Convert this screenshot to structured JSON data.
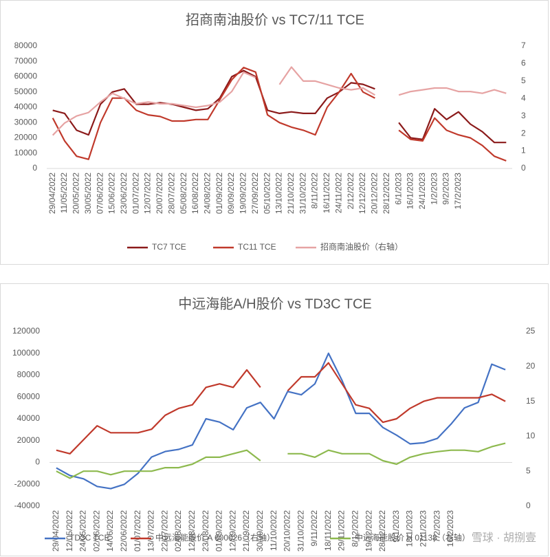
{
  "chart_data": [
    {
      "type": "line",
      "title": "招商南油股价 vs TC7/11 TCE",
      "categories": [
        "29/04/2022",
        "11/05/2022",
        "20/05/2022",
        "30/05/2022",
        "07/06/2022",
        "15/06/2022",
        "23/06/2022",
        "01/07/2022",
        "12/07/2022",
        "20/07/2022",
        "28/07/2022",
        "05/08/2022",
        "16/08/2022",
        "24/08/2022",
        "01/09/2022",
        "09/09/2022",
        "19/09/2022",
        "27/09/2022",
        "05/10/2022",
        "13/10/2022",
        "21/10/2022",
        "31/10/2022",
        "8/11/2022",
        "16/11/2022",
        "24/11/2022",
        "2/12/2022",
        "12/12/2022",
        "20/12/2022",
        "28/12/2022",
        "6/1/2023",
        "16/1/2023",
        "24/1/2023",
        "1/2/2023",
        "9/2/2023",
        "17/2/2023",
        null,
        null,
        null,
        null
      ],
      "ylim": [
        0,
        80000
      ],
      "yticks": [
        0,
        10000,
        20000,
        30000,
        40000,
        50000,
        60000,
        70000,
        80000
      ],
      "y2lim": [
        0,
        7
      ],
      "y2ticks": [
        0,
        1,
        2,
        3,
        4,
        5,
        6,
        7
      ],
      "series": [
        {
          "name": "TC7 TCE",
          "color": "#8b1a1a",
          "values": [
            38000,
            36000,
            25000,
            22000,
            42000,
            50000,
            52000,
            42000,
            42000,
            43000,
            42000,
            40000,
            38000,
            39000,
            46000,
            60000,
            64000,
            60000,
            38000,
            36000,
            37000,
            36000,
            36000,
            46000,
            50000,
            56000,
            55000,
            52000,
            null,
            30000,
            20000,
            19000,
            39000,
            32000,
            37000,
            29000,
            24000,
            17000,
            17000
          ]
        },
        {
          "name": "TC11 TCE",
          "color": "#c0392b",
          "values": [
            33000,
            18000,
            8000,
            6000,
            30000,
            46000,
            46000,
            38000,
            35000,
            34000,
            31000,
            31000,
            32000,
            32000,
            45000,
            58000,
            66000,
            63000,
            35000,
            30000,
            27000,
            25000,
            22000,
            40000,
            50000,
            62000,
            50000,
            46000,
            null,
            25000,
            19000,
            18000,
            33000,
            25000,
            22000,
            20000,
            15000,
            8000,
            5000
          ]
        },
        {
          "name": "招商南油股价（右轴）",
          "color": "#e6a3a3",
          "axis": "y2",
          "values": [
            1.9,
            2.6,
            3.0,
            3.2,
            3.8,
            4.3,
            4.0,
            3.7,
            3.8,
            3.7,
            3.7,
            3.6,
            3.5,
            3.6,
            3.8,
            4.4,
            5.5,
            5.2,
            null,
            4.8,
            5.8,
            5.0,
            5.0,
            4.8,
            4.6,
            4.5,
            4.6,
            4.2,
            null,
            4.2,
            4.4,
            4.5,
            4.6,
            4.6,
            4.4,
            4.4,
            4.3,
            4.5,
            4.3
          ]
        }
      ]
    },
    {
      "type": "line",
      "title": "中远海能A/H股价 vs TD3C TCE",
      "categories": [
        "29/04/2022",
        "12/05/2022",
        "24/05/2022",
        "02/06/2022",
        "14/06/2022",
        "22/06/2022",
        "01/07/2022",
        "13/07/2022",
        "22/07/2022",
        "02/08/2022",
        "12/08/2022",
        "23/08/2022",
        "01/09/2022",
        "12/09/2022",
        "21/09/2022",
        "30/09/2022",
        "11/10/2022",
        "20/10/2022",
        "31/10/2022",
        "9/11/2022",
        "18/11/2022",
        "29/11/2022",
        "8/12/2022",
        "19/12/2022",
        "28/12/2022",
        "9/1/2023",
        "18/1/2023",
        "27/1/2023",
        "7/2/2023",
        "16/2/2023",
        null,
        null,
        null,
        null
      ],
      "ylim": [
        -40000,
        120000
      ],
      "yticks": [
        -40000,
        -20000,
        0,
        20000,
        40000,
        60000,
        80000,
        100000,
        120000
      ],
      "y2lim": [
        0,
        25
      ],
      "y2ticks": [
        0,
        5,
        10,
        15,
        20,
        25
      ],
      "watermark": "雪球 · 胡捌壹",
      "series": [
        {
          "name": "TD3C TCE",
          "color": "#4472c4",
          "values": [
            -5000,
            -12000,
            -15000,
            -22000,
            -24000,
            -20000,
            -10000,
            5000,
            10000,
            12000,
            16000,
            40000,
            37000,
            30000,
            50000,
            55000,
            40000,
            65000,
            62000,
            72000,
            100000,
            75000,
            45000,
            45000,
            32000,
            25000,
            17000,
            18000,
            22000,
            35000,
            50000,
            55000,
            90000,
            85000
          ]
        },
        {
          "name": "中远海能股价 A 600026（右轴）",
          "color": "#c0392b",
          "axis": "y2",
          "values": [
            8,
            7.5,
            9.5,
            11.5,
            10.5,
            10.5,
            10.5,
            11,
            13,
            14,
            14.5,
            17,
            17.5,
            17,
            19.5,
            17,
            null,
            16.5,
            18.5,
            18.5,
            20.5,
            17.5,
            14.5,
            14,
            12,
            12.5,
            14,
            15,
            15.5,
            15.5,
            15.5,
            15.5,
            16,
            15
          ]
        },
        {
          "name": "中远海能股价 H 01138（右轴）",
          "color": "#8db94e",
          "axis": "y2",
          "values": [
            5,
            4,
            5,
            5,
            4.5,
            5,
            5,
            5,
            5.5,
            5.5,
            6,
            7,
            7,
            7.5,
            8,
            6.5,
            null,
            7.5,
            7.5,
            7,
            8,
            7.5,
            7.5,
            7.5,
            6.5,
            6,
            7,
            7.5,
            7.8,
            8,
            8,
            7.8,
            8.5,
            9
          ]
        }
      ]
    }
  ]
}
